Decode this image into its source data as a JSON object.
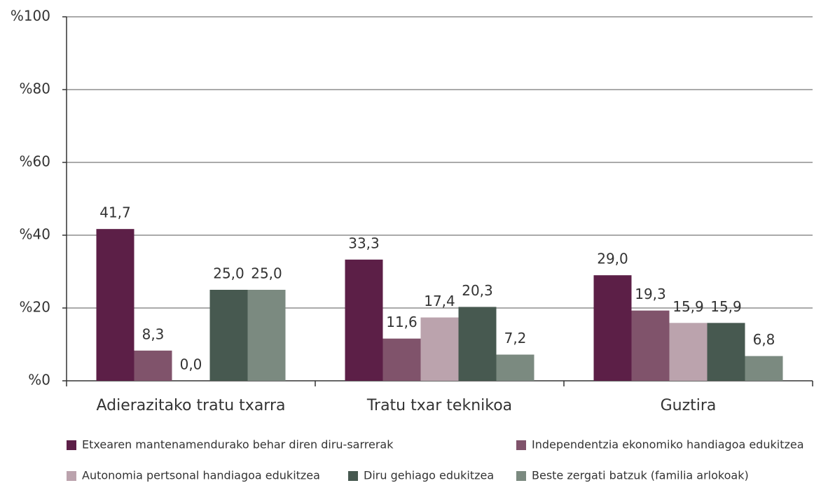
{
  "chart_data": {
    "type": "bar",
    "categories": [
      "Adierazitako tratu txarra",
      "Tratu txar teknikoa",
      "Guztira"
    ],
    "series": [
      {
        "name": "Etxearen mantenamendurako behar diren diru-sarrerak",
        "color": "#5c1f47",
        "values": [
          41.7,
          33.3,
          29.0
        ],
        "value_labels": [
          "41,7",
          "33,3",
          "29,0"
        ]
      },
      {
        "name": "Independentzia ekonomiko handiagoa edukitzea",
        "color": "#80536b",
        "values": [
          8.3,
          11.6,
          19.3
        ],
        "value_labels": [
          "8,3",
          "11,6",
          "19,3"
        ]
      },
      {
        "name": "Autonomia pertsonal handiagoa edukitzea",
        "color": "#bba3ad",
        "values": [
          0.0,
          17.4,
          15.9
        ],
        "value_labels": [
          "0,0",
          "17,4",
          "15,9"
        ]
      },
      {
        "name": "Diru gehiago edukitzea",
        "color": "#475950",
        "values": [
          25.0,
          20.3,
          15.9
        ],
        "value_labels": [
          "25,0",
          "20,3",
          "15,9"
        ]
      },
      {
        "name": "Beste zergati batzuk (familia arlokoak)",
        "color": "#7b8a80",
        "values": [
          25.0,
          7.2,
          6.8
        ],
        "value_labels": [
          "25,0",
          "7,2",
          "6,8"
        ]
      }
    ],
    "ylim": [
      0,
      100
    ],
    "yticks": [
      {
        "value": 0,
        "label": "%0"
      },
      {
        "value": 20,
        "label": "%20"
      },
      {
        "value": 40,
        "label": "%40"
      },
      {
        "value": 60,
        "label": "%60"
      },
      {
        "value": 80,
        "label": "%80"
      },
      {
        "value": 100,
        "label": "%100"
      }
    ],
    "grid": true,
    "legend": "bottom"
  }
}
